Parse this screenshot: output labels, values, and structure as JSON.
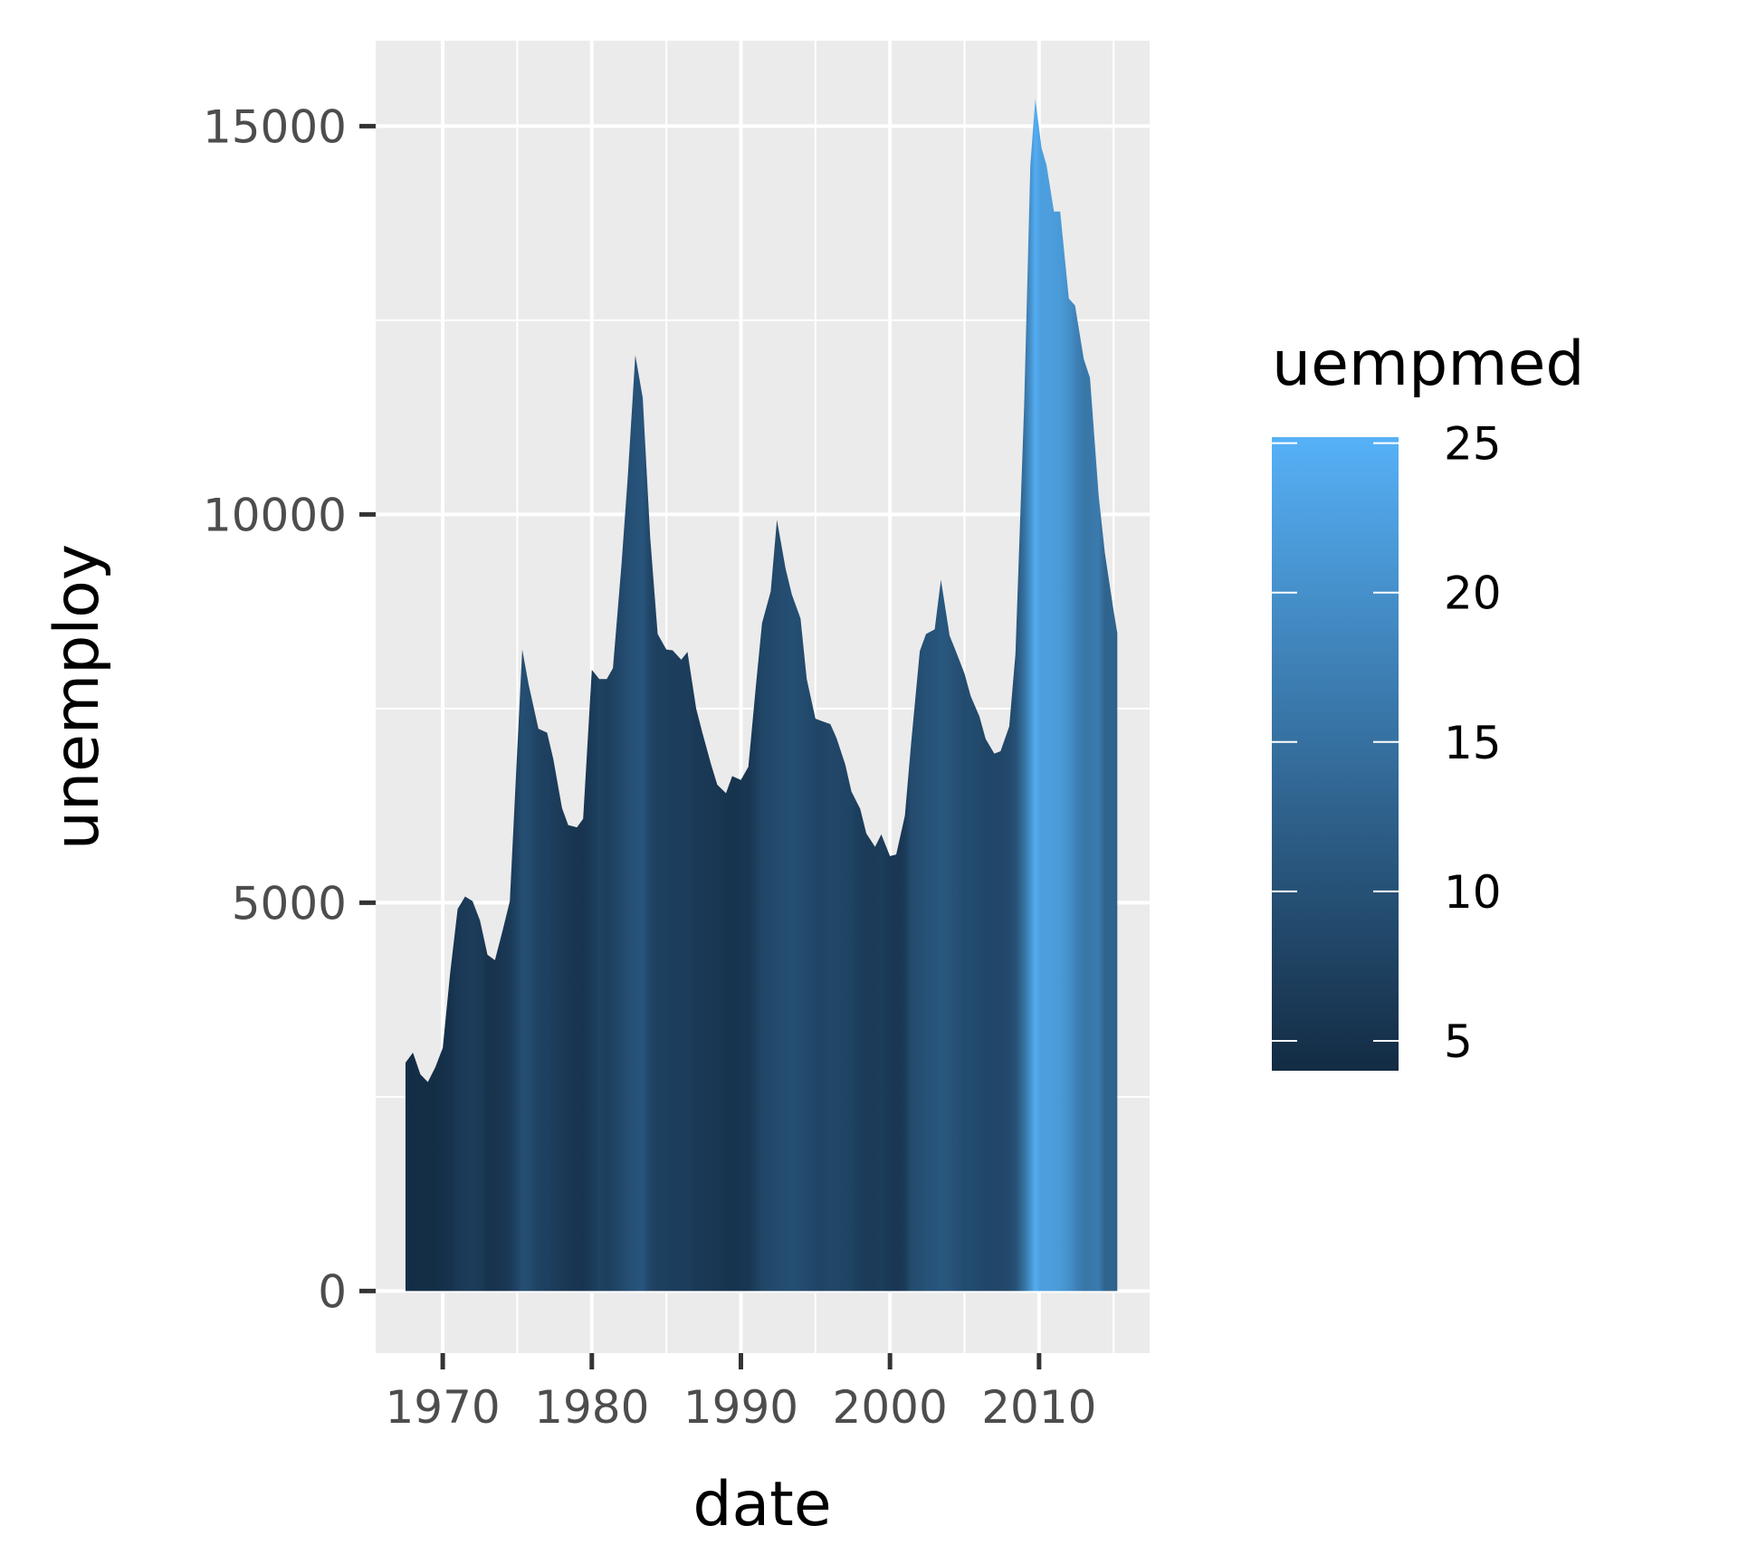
{
  "chart_data": {
    "type": "area",
    "xlabel": "date",
    "ylabel": "unemploy",
    "legend_title": "uempmed",
    "x_ticks": [
      "1970",
      "1980",
      "1990",
      "2000",
      "2010"
    ],
    "y_ticks": [
      "0",
      "5000",
      "10000",
      "15000"
    ],
    "legend_ticks": [
      "5",
      "10",
      "15",
      "20",
      "25"
    ],
    "xlim": [
      "1965-07-01",
      "2017-06-01"
    ],
    "ylim": [
      -800,
      16100
    ],
    "color_range": [
      4,
      25.2
    ],
    "colors": {
      "low": "#132B43",
      "high": "#56B1F7",
      "panel": "#EBEBEB",
      "grid": "#FFFFFF"
    },
    "grid": true,
    "legend_position": "right",
    "series": [
      {
        "x": [
          "1967-07-01",
          "1968-01-01",
          "1968-07-01",
          "1969-01-01",
          "1969-07-01",
          "1970-01-01",
          "1970-07-01",
          "1971-01-01",
          "1971-07-01",
          "1972-01-01",
          "1972-07-01",
          "1973-01-01",
          "1973-07-01",
          "1974-01-01",
          "1974-07-01",
          "1975-01-01",
          "1975-05-01",
          "1975-10-01",
          "1976-06-01",
          "1977-01-01",
          "1977-06-01",
          "1978-01-01",
          "1978-06-01",
          "1979-01-01",
          "1979-06-01",
          "1980-01-01",
          "1980-07-01",
          "1981-01-01",
          "1981-06-01",
          "1982-01-01",
          "1982-06-01",
          "1982-12-01",
          "1983-06-01",
          "1983-12-01",
          "1984-06-01",
          "1985-01-01",
          "1985-06-01",
          "1986-01-01",
          "1986-06-01",
          "1987-01-01",
          "1987-06-01",
          "1988-01-01",
          "1988-06-01",
          "1989-01-01",
          "1989-06-01",
          "1990-01-01",
          "1990-07-01",
          "1991-01-01",
          "1991-06-01",
          "1992-01-01",
          "1992-06-01",
          "1993-01-01",
          "1993-06-01",
          "1994-01-01",
          "1994-06-01",
          "1995-01-01",
          "1995-06-01",
          "1996-01-01",
          "1996-06-01",
          "1997-01-01",
          "1997-06-01",
          "1998-01-01",
          "1998-06-01",
          "1999-01-01",
          "1999-06-01",
          "2000-01-01",
          "2000-06-01",
          "2001-01-01",
          "2001-06-01",
          "2002-01-01",
          "2002-06-01",
          "2003-01-01",
          "2003-06-01",
          "2004-01-01",
          "2004-06-01",
          "2005-01-01",
          "2005-06-01",
          "2006-01-01",
          "2006-06-01",
          "2007-01-01",
          "2007-06-01",
          "2008-01-01",
          "2008-06-01",
          "2009-01-01",
          "2009-06-01",
          "2009-10-01",
          "2010-03-01",
          "2010-07-01",
          "2011-01-01",
          "2011-06-01",
          "2012-01-01",
          "2012-06-01",
          "2013-01-01",
          "2013-06-01",
          "2014-01-01",
          "2014-06-01",
          "2015-01-01",
          "2015-04-01"
        ],
        "values": [
          2940,
          3070,
          2790,
          2690,
          2880,
          3130,
          4100,
          4920,
          5080,
          5020,
          4770,
          4330,
          4260,
          4630,
          5020,
          6980,
          8260,
          7820,
          7240,
          7190,
          6850,
          6220,
          6000,
          5970,
          6080,
          8000,
          7880,
          7880,
          8020,
          9380,
          10500,
          12051,
          11500,
          9700,
          8460,
          8260,
          8250,
          8130,
          8230,
          7500,
          7190,
          6780,
          6520,
          6410,
          6630,
          6580,
          6750,
          7780,
          8600,
          9010,
          9930,
          9300,
          8970,
          8660,
          7880,
          7370,
          7340,
          7300,
          7120,
          6780,
          6430,
          6210,
          5890,
          5720,
          5880,
          5600,
          5620,
          6120,
          7050,
          8240,
          8460,
          8520,
          9160,
          8440,
          8240,
          7950,
          7660,
          7400,
          7110,
          6920,
          6950,
          7270,
          8200,
          11400,
          14500,
          15350,
          14720,
          14500,
          13900,
          13900,
          12780,
          12690,
          12000,
          11760,
          10240,
          9500,
          8760,
          8470
        ],
        "color_values": [
          4.5,
          4.3,
          4.4,
          4.4,
          4.4,
          4.8,
          5.1,
          6.1,
          6.6,
          6.7,
          6.4,
          5.3,
          5.2,
          5.8,
          6.3,
          8.0,
          9.5,
          9.2,
          7.6,
          7.4,
          6.9,
          6.4,
          5.9,
          5.6,
          5.5,
          6.6,
          7.6,
          7.2,
          7.7,
          8.8,
          9.5,
          10.2,
          10.7,
          8.0,
          7.4,
          7.2,
          6.9,
          6.8,
          7.0,
          6.2,
          6.2,
          5.9,
          5.8,
          5.4,
          5.2,
          5.7,
          5.6,
          7.0,
          8.2,
          8.7,
          9.0,
          9.4,
          9.6,
          9.2,
          8.9,
          8.2,
          8.0,
          8.5,
          8.3,
          8.0,
          7.8,
          6.9,
          6.6,
          6.5,
          6.8,
          6.1,
          5.8,
          6.3,
          9.2,
          9.5,
          10.1,
          10.4,
          11.1,
          10.5,
          10.0,
          9.2,
          9.2,
          8.7,
          8.2,
          8.3,
          8.4,
          8.8,
          10.0,
          15.0,
          20.0,
          24.5,
          22.0,
          22.4,
          21.8,
          21.5,
          19.9,
          18.0,
          16.0,
          16.0,
          16.5,
          13.0,
          13.0,
          12.4
        ]
      }
    ]
  }
}
